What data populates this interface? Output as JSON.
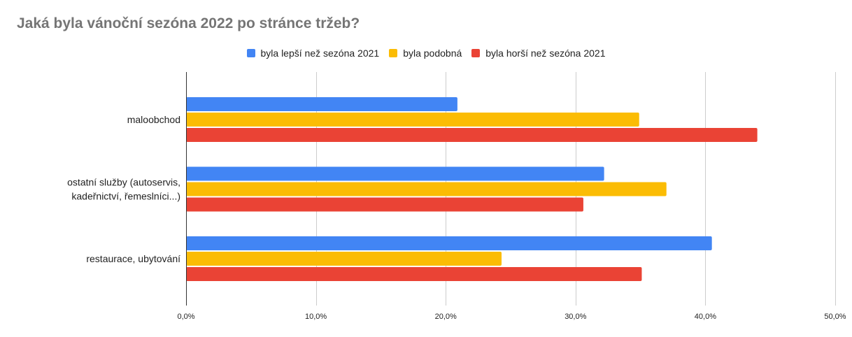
{
  "chart_data": {
    "type": "bar",
    "orientation": "horizontal",
    "title": "Jaká byla vánoční sezóna 2022 po stránce tržeb?",
    "xlabel": "",
    "ylabel": "",
    "xlim": [
      0,
      50
    ],
    "grid": true,
    "legend_position": "top",
    "categories": [
      [
        "maloobchod"
      ],
      [
        "ostatní služby (autoservis,",
        "kadeřnictví, řemeslníci...)"
      ],
      [
        "restaurace, ubytování"
      ]
    ],
    "x_ticks": [
      0,
      10,
      20,
      30,
      40,
      50
    ],
    "x_tick_labels": [
      "0,0%",
      "10,0%",
      "20,0%",
      "30,0%",
      "40,0%",
      "50,0%"
    ],
    "series": [
      {
        "name": "byla lepší než sezóna 2021",
        "color": "#4285F4",
        "values": [
          20.9,
          32.2,
          40.5
        ]
      },
      {
        "name": "byla podobná",
        "color": "#FBBC04",
        "values": [
          34.9,
          37.0,
          24.3
        ]
      },
      {
        "name": "byla horší než sezóna 2021",
        "color": "#EA4335",
        "values": [
          44.0,
          30.6,
          35.1
        ]
      }
    ]
  }
}
